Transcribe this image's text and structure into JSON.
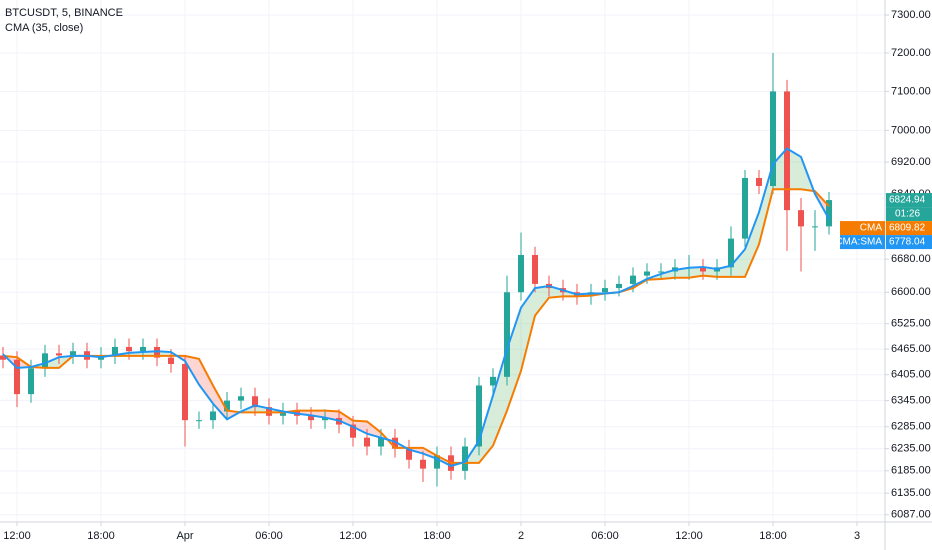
{
  "chart_data": {
    "type": "candlestick",
    "title": "BTCUSDT, 5, BINANCE",
    "subtitle": "CMA (35, close)",
    "log_scale": true,
    "grid": true,
    "categories": [
      null,
      "12:00",
      null,
      null,
      null,
      null,
      null,
      "18:00",
      null,
      null,
      null,
      null,
      null,
      "Apr",
      null,
      null,
      null,
      null,
      null,
      "06:00",
      null,
      null,
      null,
      null,
      null,
      "12:00",
      null,
      null,
      null,
      null,
      null,
      "18:00",
      null,
      null,
      null,
      null,
      null,
      "2",
      null,
      null,
      null,
      null,
      null,
      "06:00",
      null,
      null,
      null,
      null,
      null,
      "12:00",
      null,
      null,
      null,
      null,
      null,
      "18:00",
      null,
      null,
      null,
      null,
      null,
      "3"
    ],
    "ylim": [
      6071,
      7340
    ],
    "yticks": [
      {
        "value": 7300,
        "label": "7300.00"
      },
      {
        "value": 7200,
        "label": "7200.00"
      },
      {
        "value": 7100,
        "label": "7100.00"
      },
      {
        "value": 7000,
        "label": "7000.00"
      },
      {
        "value": 6920,
        "label": "6920.00"
      },
      {
        "value": 6840,
        "label": "6840.00"
      },
      {
        "value": 6680,
        "label": "6680.00"
      },
      {
        "value": 6600,
        "label": "6600.00"
      },
      {
        "value": 6525,
        "label": "6525.00"
      },
      {
        "value": 6465,
        "label": "6465.00"
      },
      {
        "value": 6405,
        "label": "6405.00"
      },
      {
        "value": 6345,
        "label": "6345.00"
      },
      {
        "value": 6285,
        "label": "6285.00"
      },
      {
        "value": 6235,
        "label": "6235.00"
      },
      {
        "value": 6185,
        "label": "6185.00"
      },
      {
        "value": 6135,
        "label": "6135.00"
      },
      {
        "value": 6087,
        "label": "6087.00"
      }
    ],
    "up_color": "#26a69a",
    "down_color": "#ef5350",
    "above_fill": "rgba(76,175,80,0.22)",
    "below_fill": "rgba(244,67,54,0.22)",
    "countdown": "01:26",
    "ohlc": {
      "open": [
        6450,
        6440,
        6360,
        6420,
        6455,
        6450,
        6460,
        6440,
        6450,
        6470,
        6460,
        6470,
        6445,
        6430,
        6300,
        6300,
        6320,
        6345,
        6355,
        6330,
        6310,
        6320,
        6310,
        6300,
        6305,
        6290,
        6260,
        6240,
        6260,
        6235,
        6210,
        6190,
        6220,
        6185,
        6240,
        6380,
        6400,
        6600,
        6690,
        6620,
        6610,
        6600,
        6590,
        6600,
        6610,
        6620,
        6640,
        6650,
        6650,
        6660,
        6660,
        6650,
        6660,
        6730,
        6880,
        6860,
        7100,
        6800,
        6760,
        6760,
        null,
        null
      ],
      "high": [
        6470,
        6460,
        6440,
        6475,
        6475,
        6480,
        6480,
        6470,
        6490,
        6490,
        6490,
        6490,
        6465,
        6450,
        6320,
        6340,
        6365,
        6375,
        6375,
        6350,
        6340,
        6340,
        6330,
        6325,
        6325,
        6310,
        6280,
        6280,
        6280,
        6255,
        6230,
        6240,
        6240,
        6260,
        6400,
        6420,
        6640,
        6745,
        6710,
        6640,
        6630,
        6620,
        6620,
        6630,
        6640,
        6660,
        6670,
        6670,
        6680,
        6690,
        6680,
        6680,
        6760,
        6900,
        6900,
        7200,
        7130,
        6830,
        6800,
        6845,
        null,
        null
      ],
      "low": [
        6420,
        6330,
        6340,
        6400,
        6430,
        6430,
        6420,
        6420,
        6430,
        6440,
        6440,
        6425,
        6410,
        6240,
        6280,
        6280,
        6300,
        6325,
        6310,
        6290,
        6290,
        6290,
        6280,
        6280,
        6270,
        6240,
        6220,
        6220,
        6215,
        6190,
        6160,
        6150,
        6165,
        6165,
        6220,
        6360,
        6380,
        6580,
        6600,
        6590,
        6580,
        6570,
        6570,
        6580,
        6590,
        6600,
        6620,
        6630,
        6630,
        6630,
        6630,
        6630,
        6640,
        6710,
        6840,
        6840,
        6700,
        6650,
        6700,
        6740,
        null,
        null
      ],
      "close": [
        6440,
        6360,
        6420,
        6455,
        6450,
        6460,
        6440,
        6450,
        6470,
        6460,
        6470,
        6445,
        6430,
        6300,
        6300,
        6320,
        6345,
        6355,
        6330,
        6310,
        6320,
        6310,
        6300,
        6305,
        6290,
        6260,
        6240,
        6260,
        6235,
        6210,
        6190,
        6220,
        6185,
        6240,
        6380,
        6400,
        6600,
        6690,
        6620,
        6610,
        6600,
        6590,
        6600,
        6610,
        6620,
        6640,
        6650,
        6650,
        6660,
        6660,
        6650,
        6660,
        6730,
        6880,
        6860,
        7100,
        6800,
        6760,
        6760,
        6824.94,
        null,
        null
      ]
    },
    "series": [
      {
        "name": "CMA",
        "color": "#f57c00",
        "values": [
          6449,
          6446,
          6423,
          6421,
          6421,
          6449,
          6449,
          6449,
          6449,
          6449,
          6449,
          6449,
          6449,
          6449,
          6442,
          6380,
          6322,
          6318,
          6318,
          6318,
          6318,
          6322,
          6322,
          6322,
          6320,
          6299,
          6297,
          6272,
          6237,
          6237,
          6237,
          6219,
          6203,
          6203,
          6203,
          6242,
          6322,
          6414,
          6544,
          6587,
          6590,
          6590,
          6592,
          6597,
          6600,
          6610,
          6630,
          6632,
          6635,
          6635,
          6640,
          6637,
          6637,
          6637,
          6716,
          6852,
          6852,
          6852,
          6847,
          6809.82,
          null,
          null
        ]
      },
      {
        "name": "CMA:SMA",
        "color": "#2196f3",
        "values": [
          6453,
          6421,
          6423,
          6432,
          6446,
          6449,
          6449,
          6446,
          6451,
          6456,
          6458,
          6460,
          6458,
          6437,
          6382,
          6338,
          6302,
          6320,
          6334,
          6327,
          6320,
          6315,
          6311,
          6306,
          6299,
          6285,
          6269,
          6260,
          6251,
          6233,
          6224,
          6212,
          6196,
          6205,
          6253,
          6357,
          6465,
          6563,
          6610,
          6615,
          6605,
          6595,
          6597,
          6597,
          6600,
          6615,
          6632,
          6644,
          6654,
          6659,
          6661,
          6656,
          6664,
          6704,
          6795,
          6915,
          6954,
          6933,
          6840,
          6778.04,
          null,
          null
        ]
      }
    ]
  }
}
